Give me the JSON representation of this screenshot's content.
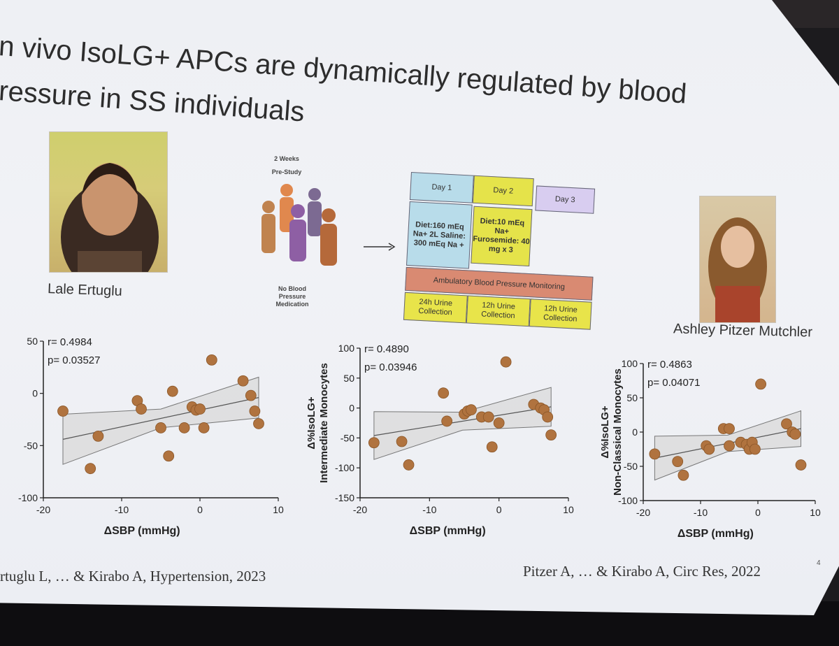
{
  "slide": {
    "title_line1": "n vivo IsoLG+ APCs are dynamically regulated by blood",
    "title_line2": "ressure in SS individuals",
    "person_left": "Lale Ertuglu",
    "person_right": "Ashley Pitzer Mutchler",
    "study_pre_line1": "2 Weeks",
    "study_pre_line2": "Pre-Study",
    "no_med_line1": "No Blood",
    "no_med_line2": "Pressure",
    "no_med_line3": "Medication",
    "ref_left": "rtuglu L, … & Kirabo A, Hypertension, 2023",
    "ref_right": "Pitzer A, … & Kirabo A, Circ Res, 2022",
    "page_number": "4"
  },
  "protocol": {
    "day1": "Day 1",
    "day2": "Day 2",
    "day3": "Day 3",
    "day1_diet": "Diet:160 mEq Na+ 2L Saline: 300 mEq Na +",
    "day2_diet": "Diet:10 mEq Na+ Furosemide: 40 mg x 3",
    "monitoring": "Ambulatory Blood Pressure Monitoring",
    "urine1": "24h Urine Collection",
    "urine2": "12h Urine Collection",
    "urine3": "12h Urine Collection",
    "colors": {
      "day1": "#b8dcea",
      "day2": "#e5e34a",
      "day3": "#d8cdf0",
      "monitor": "#d98a72",
      "urine": "#e8e44a"
    }
  },
  "chart_data": [
    {
      "type": "scatter",
      "title": "",
      "xlabel": "ΔSBP (mmHg)",
      "ylabel": "",
      "xlim": [
        -20,
        10
      ],
      "ylim": [
        -100,
        50
      ],
      "xticks": [
        -20,
        -10,
        0,
        10
      ],
      "yticks": [
        50,
        0,
        -50,
        -100
      ],
      "stat_r": "r= 0.4984",
      "stat_p": "p= 0.03527",
      "point_color": "#b0733f",
      "x": [
        -17.5,
        -14,
        -13,
        -8,
        -7.5,
        -5,
        -4,
        -3.5,
        -2,
        -1,
        -0.5,
        0,
        0.5,
        1.5,
        5.5,
        6.5,
        7,
        7.5
      ],
      "y": [
        -17,
        -72,
        -41,
        -7,
        -15,
        -33,
        -60,
        2,
        -33,
        -13,
        -16,
        -15,
        -33,
        32,
        12,
        -2,
        -17,
        -29
      ],
      "fit_line": [
        [
          -17.5,
          -44
        ],
        [
          7.5,
          -4
        ]
      ]
    },
    {
      "type": "scatter",
      "title": "",
      "xlabel": "ΔSBP (mmHg)",
      "ylabel": "Δ%IsoLG+ Intermediate Monocytes",
      "xlim": [
        -20,
        10
      ],
      "ylim": [
        -150,
        100
      ],
      "xticks": [
        -20,
        -10,
        0,
        10
      ],
      "yticks": [
        100,
        50,
        0,
        -50,
        -100,
        -150
      ],
      "stat_r": "r= 0.4890",
      "stat_p": "p= 0.03946",
      "point_color": "#b0733f",
      "x": [
        -18,
        -14,
        -13,
        -8,
        -7.5,
        -5,
        -4.5,
        -4,
        -2.5,
        -1.5,
        -1,
        0,
        1,
        5,
        6,
        6.5,
        7,
        7.5
      ],
      "y": [
        -58,
        -56,
        -95,
        25,
        -22,
        -10,
        -5,
        -3,
        -15,
        -15,
        -65,
        -25,
        77,
        6,
        0,
        -3,
        -15,
        -45
      ],
      "fit_line": [
        [
          -18,
          -46
        ],
        [
          7.5,
          2
        ]
      ]
    },
    {
      "type": "scatter",
      "title": "",
      "xlabel": "ΔSBP (mmHg)",
      "ylabel": "Δ%IsoLG+ Non-Classical Monocytes",
      "xlim": [
        -20,
        10
      ],
      "ylim": [
        -100,
        100
      ],
      "xticks": [
        -20,
        -10,
        0,
        10
      ],
      "yticks": [
        100,
        50,
        0,
        -50,
        -100
      ],
      "stat_r": "r= 0.4863",
      "stat_p": "p= 0.04071",
      "point_color": "#b0733f",
      "x": [
        -18,
        -14,
        -13,
        -9,
        -8.5,
        -6,
        -5,
        -5,
        -3,
        -2,
        -1.5,
        -1,
        -0.5,
        0.5,
        5,
        6,
        6.5,
        7.5
      ],
      "y": [
        -32,
        -43,
        -63,
        -20,
        -25,
        5,
        5,
        -20,
        -15,
        -18,
        -25,
        -15,
        -25,
        70,
        12,
        0,
        -3,
        -48
      ],
      "fit_line": [
        [
          -18,
          -38
        ],
        [
          7.5,
          5
        ]
      ]
    }
  ]
}
